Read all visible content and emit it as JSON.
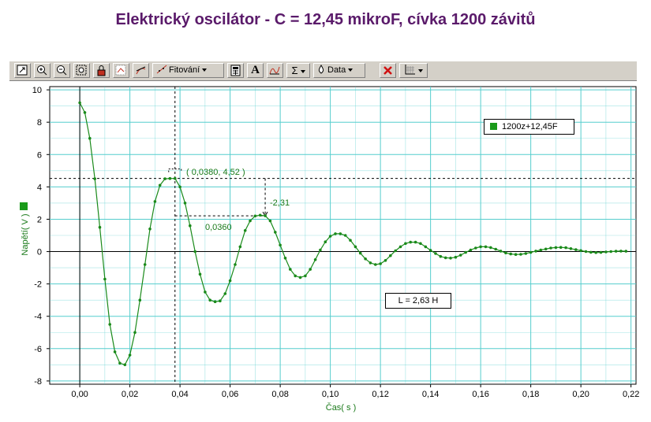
{
  "title": "Elektrický oscilátor - C = 12,45 mikroF, cívka 1200 závitů",
  "toolbar": {
    "fit_label": "Fitování",
    "data_label": "Data",
    "sigma_label": "Σ",
    "text_tool_label": "A"
  },
  "legend": {
    "label": "1200z+12,45F",
    "color": "#1a9a1a"
  },
  "inductance_box": {
    "text": "L = 2,63 H"
  },
  "annotations": {
    "peak_point": "( 0,0380, 4,52 )",
    "delta_x": "0,0360",
    "delta_y": "-2,31"
  },
  "colors": {
    "series": "#1a8a1a",
    "grid": "#55cdcd",
    "annotation": "#1a7a1a",
    "title": "#5a1a6a"
  },
  "chart_data": {
    "type": "line",
    "title": "Elektrický oscilátor - C = 12,45 mikroF, cívka 1200 závitů",
    "xlabel": "Čas( s )",
    "ylabel": "Napětí( V )",
    "xlim": [
      -0.012,
      0.222
    ],
    "ylim": [
      -8.2,
      10.2
    ],
    "x_ticks": [
      0.0,
      0.02,
      0.04,
      0.06,
      0.08,
      0.1,
      0.12,
      0.14,
      0.16,
      0.18,
      0.2,
      0.22
    ],
    "x_tick_labels": [
      "0,00",
      "0,02",
      "0,04",
      "0,06",
      "0,08",
      "0,10",
      "0,12",
      "0,14",
      "0,16",
      "0,18",
      "0,20",
      "0,22"
    ],
    "y_ticks": [
      -8,
      -6,
      -4,
      -2,
      0,
      2,
      4,
      6,
      8,
      10
    ],
    "y_tick_labels": [
      "-8",
      "-6",
      "-4",
      "-2",
      "0",
      "2",
      "4",
      "6",
      "8",
      "10"
    ],
    "grid": true,
    "legend_position": "top-right",
    "series": [
      {
        "name": "1200z+12,45F",
        "points": [
          [
            0.0,
            9.2
          ],
          [
            0.002,
            8.6
          ],
          [
            0.004,
            7.0
          ],
          [
            0.006,
            4.5
          ],
          [
            0.008,
            1.5
          ],
          [
            0.01,
            -1.7
          ],
          [
            0.012,
            -4.5
          ],
          [
            0.014,
            -6.2
          ],
          [
            0.016,
            -6.9
          ],
          [
            0.018,
            -7.0
          ],
          [
            0.02,
            -6.4
          ],
          [
            0.022,
            -5.0
          ],
          [
            0.024,
            -3.0
          ],
          [
            0.026,
            -0.8
          ],
          [
            0.028,
            1.4
          ],
          [
            0.03,
            3.1
          ],
          [
            0.032,
            4.1
          ],
          [
            0.034,
            4.5
          ],
          [
            0.036,
            4.52
          ],
          [
            0.038,
            4.52
          ],
          [
            0.04,
            4.0
          ],
          [
            0.042,
            3.0
          ],
          [
            0.044,
            1.6
          ],
          [
            0.046,
            0.0
          ],
          [
            0.048,
            -1.4
          ],
          [
            0.05,
            -2.5
          ],
          [
            0.052,
            -3.0
          ],
          [
            0.054,
            -3.1
          ],
          [
            0.056,
            -3.05
          ],
          [
            0.058,
            -2.6
          ],
          [
            0.06,
            -1.8
          ],
          [
            0.062,
            -0.8
          ],
          [
            0.064,
            0.3
          ],
          [
            0.066,
            1.3
          ],
          [
            0.068,
            1.9
          ],
          [
            0.07,
            2.2
          ],
          [
            0.072,
            2.25
          ],
          [
            0.074,
            2.21
          ],
          [
            0.076,
            1.9
          ],
          [
            0.078,
            1.2
          ],
          [
            0.08,
            0.4
          ],
          [
            0.082,
            -0.4
          ],
          [
            0.084,
            -1.1
          ],
          [
            0.086,
            -1.5
          ],
          [
            0.088,
            -1.6
          ],
          [
            0.09,
            -1.5
          ],
          [
            0.092,
            -1.1
          ],
          [
            0.094,
            -0.5
          ],
          [
            0.096,
            0.1
          ],
          [
            0.098,
            0.6
          ],
          [
            0.1,
            0.95
          ],
          [
            0.102,
            1.1
          ],
          [
            0.104,
            1.1
          ],
          [
            0.106,
            1.0
          ],
          [
            0.108,
            0.7
          ],
          [
            0.11,
            0.3
          ],
          [
            0.112,
            -0.1
          ],
          [
            0.114,
            -0.45
          ],
          [
            0.116,
            -0.7
          ],
          [
            0.118,
            -0.8
          ],
          [
            0.12,
            -0.75
          ],
          [
            0.122,
            -0.55
          ],
          [
            0.124,
            -0.25
          ],
          [
            0.126,
            0.05
          ],
          [
            0.128,
            0.3
          ],
          [
            0.13,
            0.5
          ],
          [
            0.132,
            0.58
          ],
          [
            0.134,
            0.58
          ],
          [
            0.136,
            0.5
          ],
          [
            0.138,
            0.3
          ],
          [
            0.14,
            0.08
          ],
          [
            0.142,
            -0.12
          ],
          [
            0.144,
            -0.3
          ],
          [
            0.146,
            -0.38
          ],
          [
            0.148,
            -0.4
          ],
          [
            0.15,
            -0.35
          ],
          [
            0.152,
            -0.22
          ],
          [
            0.154,
            -0.05
          ],
          [
            0.156,
            0.1
          ],
          [
            0.158,
            0.22
          ],
          [
            0.16,
            0.3
          ],
          [
            0.162,
            0.3
          ],
          [
            0.164,
            0.25
          ],
          [
            0.166,
            0.15
          ],
          [
            0.168,
            0.03
          ],
          [
            0.17,
            -0.08
          ],
          [
            0.172,
            -0.15
          ],
          [
            0.174,
            -0.18
          ],
          [
            0.176,
            -0.17
          ],
          [
            0.178,
            -0.12
          ],
          [
            0.18,
            -0.05
          ],
          [
            0.182,
            0.03
          ],
          [
            0.184,
            0.1
          ],
          [
            0.186,
            0.16
          ],
          [
            0.188,
            0.22
          ],
          [
            0.19,
            0.25
          ],
          [
            0.192,
            0.26
          ],
          [
            0.194,
            0.24
          ],
          [
            0.196,
            0.18
          ],
          [
            0.198,
            0.12
          ],
          [
            0.2,
            0.06
          ],
          [
            0.202,
            0.0
          ],
          [
            0.204,
            -0.04
          ],
          [
            0.206,
            -0.06
          ],
          [
            0.208,
            -0.05
          ],
          [
            0.21,
            -0.02
          ],
          [
            0.212,
            0.0
          ],
          [
            0.214,
            0.02
          ],
          [
            0.216,
            0.03
          ],
          [
            0.218,
            0.02
          ]
        ]
      }
    ],
    "annotations": [
      {
        "text": "( 0,0380, 4,52 )",
        "x": 0.038,
        "y": 4.52
      },
      {
        "text": "0,0360",
        "from_x": 0.038,
        "to_x": 0.074
      },
      {
        "text": "-2,31",
        "from_y": 4.52,
        "to_y": 2.21
      }
    ]
  }
}
